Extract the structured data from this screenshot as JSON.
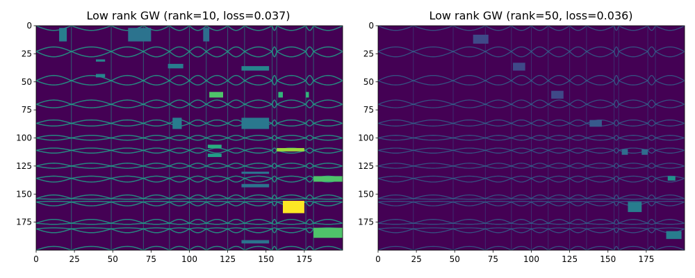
{
  "chart_data": [
    {
      "type": "heatmap",
      "title": "Low rank GW (rank=10, loss=0.037)",
      "xlabel": "",
      "ylabel": "",
      "xlim": [
        0,
        200
      ],
      "ylim": [
        200,
        0
      ],
      "xticks": [
        0,
        25,
        50,
        75,
        100,
        125,
        150,
        175
      ],
      "yticks": [
        0,
        25,
        50,
        75,
        100,
        125,
        150,
        175
      ],
      "colormap": "viridis",
      "background": "#440154",
      "cluster_bounds": [
        0,
        23,
        49,
        70,
        87,
        100,
        111,
        125,
        136,
        154,
        157,
        176,
        181,
        200
      ],
      "blocks": [
        {
          "x0": 15,
          "x1": 20,
          "y0": 2,
          "y1": 14,
          "value": 0.42
        },
        {
          "x0": 60,
          "x1": 75,
          "y0": 2,
          "y1": 14,
          "value": 0.38
        },
        {
          "x0": 109,
          "x1": 113,
          "y0": 2,
          "y1": 14,
          "value": 0.36
        },
        {
          "x0": 39,
          "x1": 45,
          "y0": 30,
          "y1": 32,
          "value": 0.45
        },
        {
          "x0": 39,
          "x1": 45,
          "y0": 43,
          "y1": 46,
          "value": 0.45
        },
        {
          "x0": 86,
          "x1": 96,
          "y0": 34,
          "y1": 38,
          "value": 0.42
        },
        {
          "x0": 134,
          "x1": 152,
          "y0": 36,
          "y1": 40,
          "value": 0.45
        },
        {
          "x0": 113,
          "x1": 122,
          "y0": 59,
          "y1": 64,
          "value": 0.72
        },
        {
          "x0": 158,
          "x1": 161,
          "y0": 59,
          "y1": 64,
          "value": 0.65
        },
        {
          "x0": 176,
          "x1": 178,
          "y0": 59,
          "y1": 64,
          "value": 0.65
        },
        {
          "x0": 89,
          "x1": 95,
          "y0": 82,
          "y1": 92,
          "value": 0.42
        },
        {
          "x0": 134,
          "x1": 152,
          "y0": 82,
          "y1": 92,
          "value": 0.4
        },
        {
          "x0": 112,
          "x1": 121,
          "y0": 106,
          "y1": 109,
          "value": 0.62
        },
        {
          "x0": 112,
          "x1": 121,
          "y0": 114,
          "y1": 117,
          "value": 0.55
        },
        {
          "x0": 157,
          "x1": 175,
          "y0": 109,
          "y1": 112,
          "value": 0.85
        },
        {
          "x0": 134,
          "x1": 152,
          "y0": 130,
          "y1": 132,
          "value": 0.38
        },
        {
          "x0": 134,
          "x1": 152,
          "y0": 141,
          "y1": 144,
          "value": 0.38
        },
        {
          "x0": 181,
          "x1": 200,
          "y0": 134,
          "y1": 139,
          "value": 0.72
        },
        {
          "x0": 161,
          "x1": 175,
          "y0": 156,
          "y1": 167,
          "value": 1.0
        },
        {
          "x0": 181,
          "x1": 200,
          "y0": 180,
          "y1": 189,
          "value": 0.72
        },
        {
          "x0": 134,
          "x1": 152,
          "y0": 191,
          "y1": 194,
          "value": 0.38
        }
      ]
    },
    {
      "type": "heatmap",
      "title": "Low rank GW (rank=50, loss=0.036)",
      "xlabel": "",
      "ylabel": "",
      "xlim": [
        0,
        200
      ],
      "ylim": [
        200,
        0
      ],
      "xticks": [
        0,
        25,
        50,
        75,
        100,
        125,
        150,
        175
      ],
      "yticks": [
        0,
        25,
        50,
        75,
        100,
        125,
        150,
        175
      ],
      "colormap": "viridis",
      "background": "#440154",
      "cluster_bounds": [
        0,
        23,
        49,
        70,
        87,
        100,
        111,
        125,
        136,
        154,
        157,
        176,
        181,
        200
      ],
      "blocks": [
        {
          "x0": 62,
          "x1": 72,
          "y0": 8,
          "y1": 16,
          "value": 0.22
        },
        {
          "x0": 88,
          "x1": 96,
          "y0": 33,
          "y1": 40,
          "value": 0.22
        },
        {
          "x0": 113,
          "x1": 121,
          "y0": 58,
          "y1": 65,
          "value": 0.22
        },
        {
          "x0": 138,
          "x1": 146,
          "y0": 84,
          "y1": 90,
          "value": 0.28
        },
        {
          "x0": 159,
          "x1": 163,
          "y0": 110,
          "y1": 115,
          "value": 0.35
        },
        {
          "x0": 172,
          "x1": 176,
          "y0": 110,
          "y1": 115,
          "value": 0.35
        },
        {
          "x0": 189,
          "x1": 194,
          "y0": 134,
          "y1": 138,
          "value": 0.5
        },
        {
          "x0": 163,
          "x1": 172,
          "y0": 157,
          "y1": 166,
          "value": 0.42
        },
        {
          "x0": 188,
          "x1": 198,
          "y0": 183,
          "y1": 190,
          "value": 0.42
        }
      ]
    }
  ]
}
